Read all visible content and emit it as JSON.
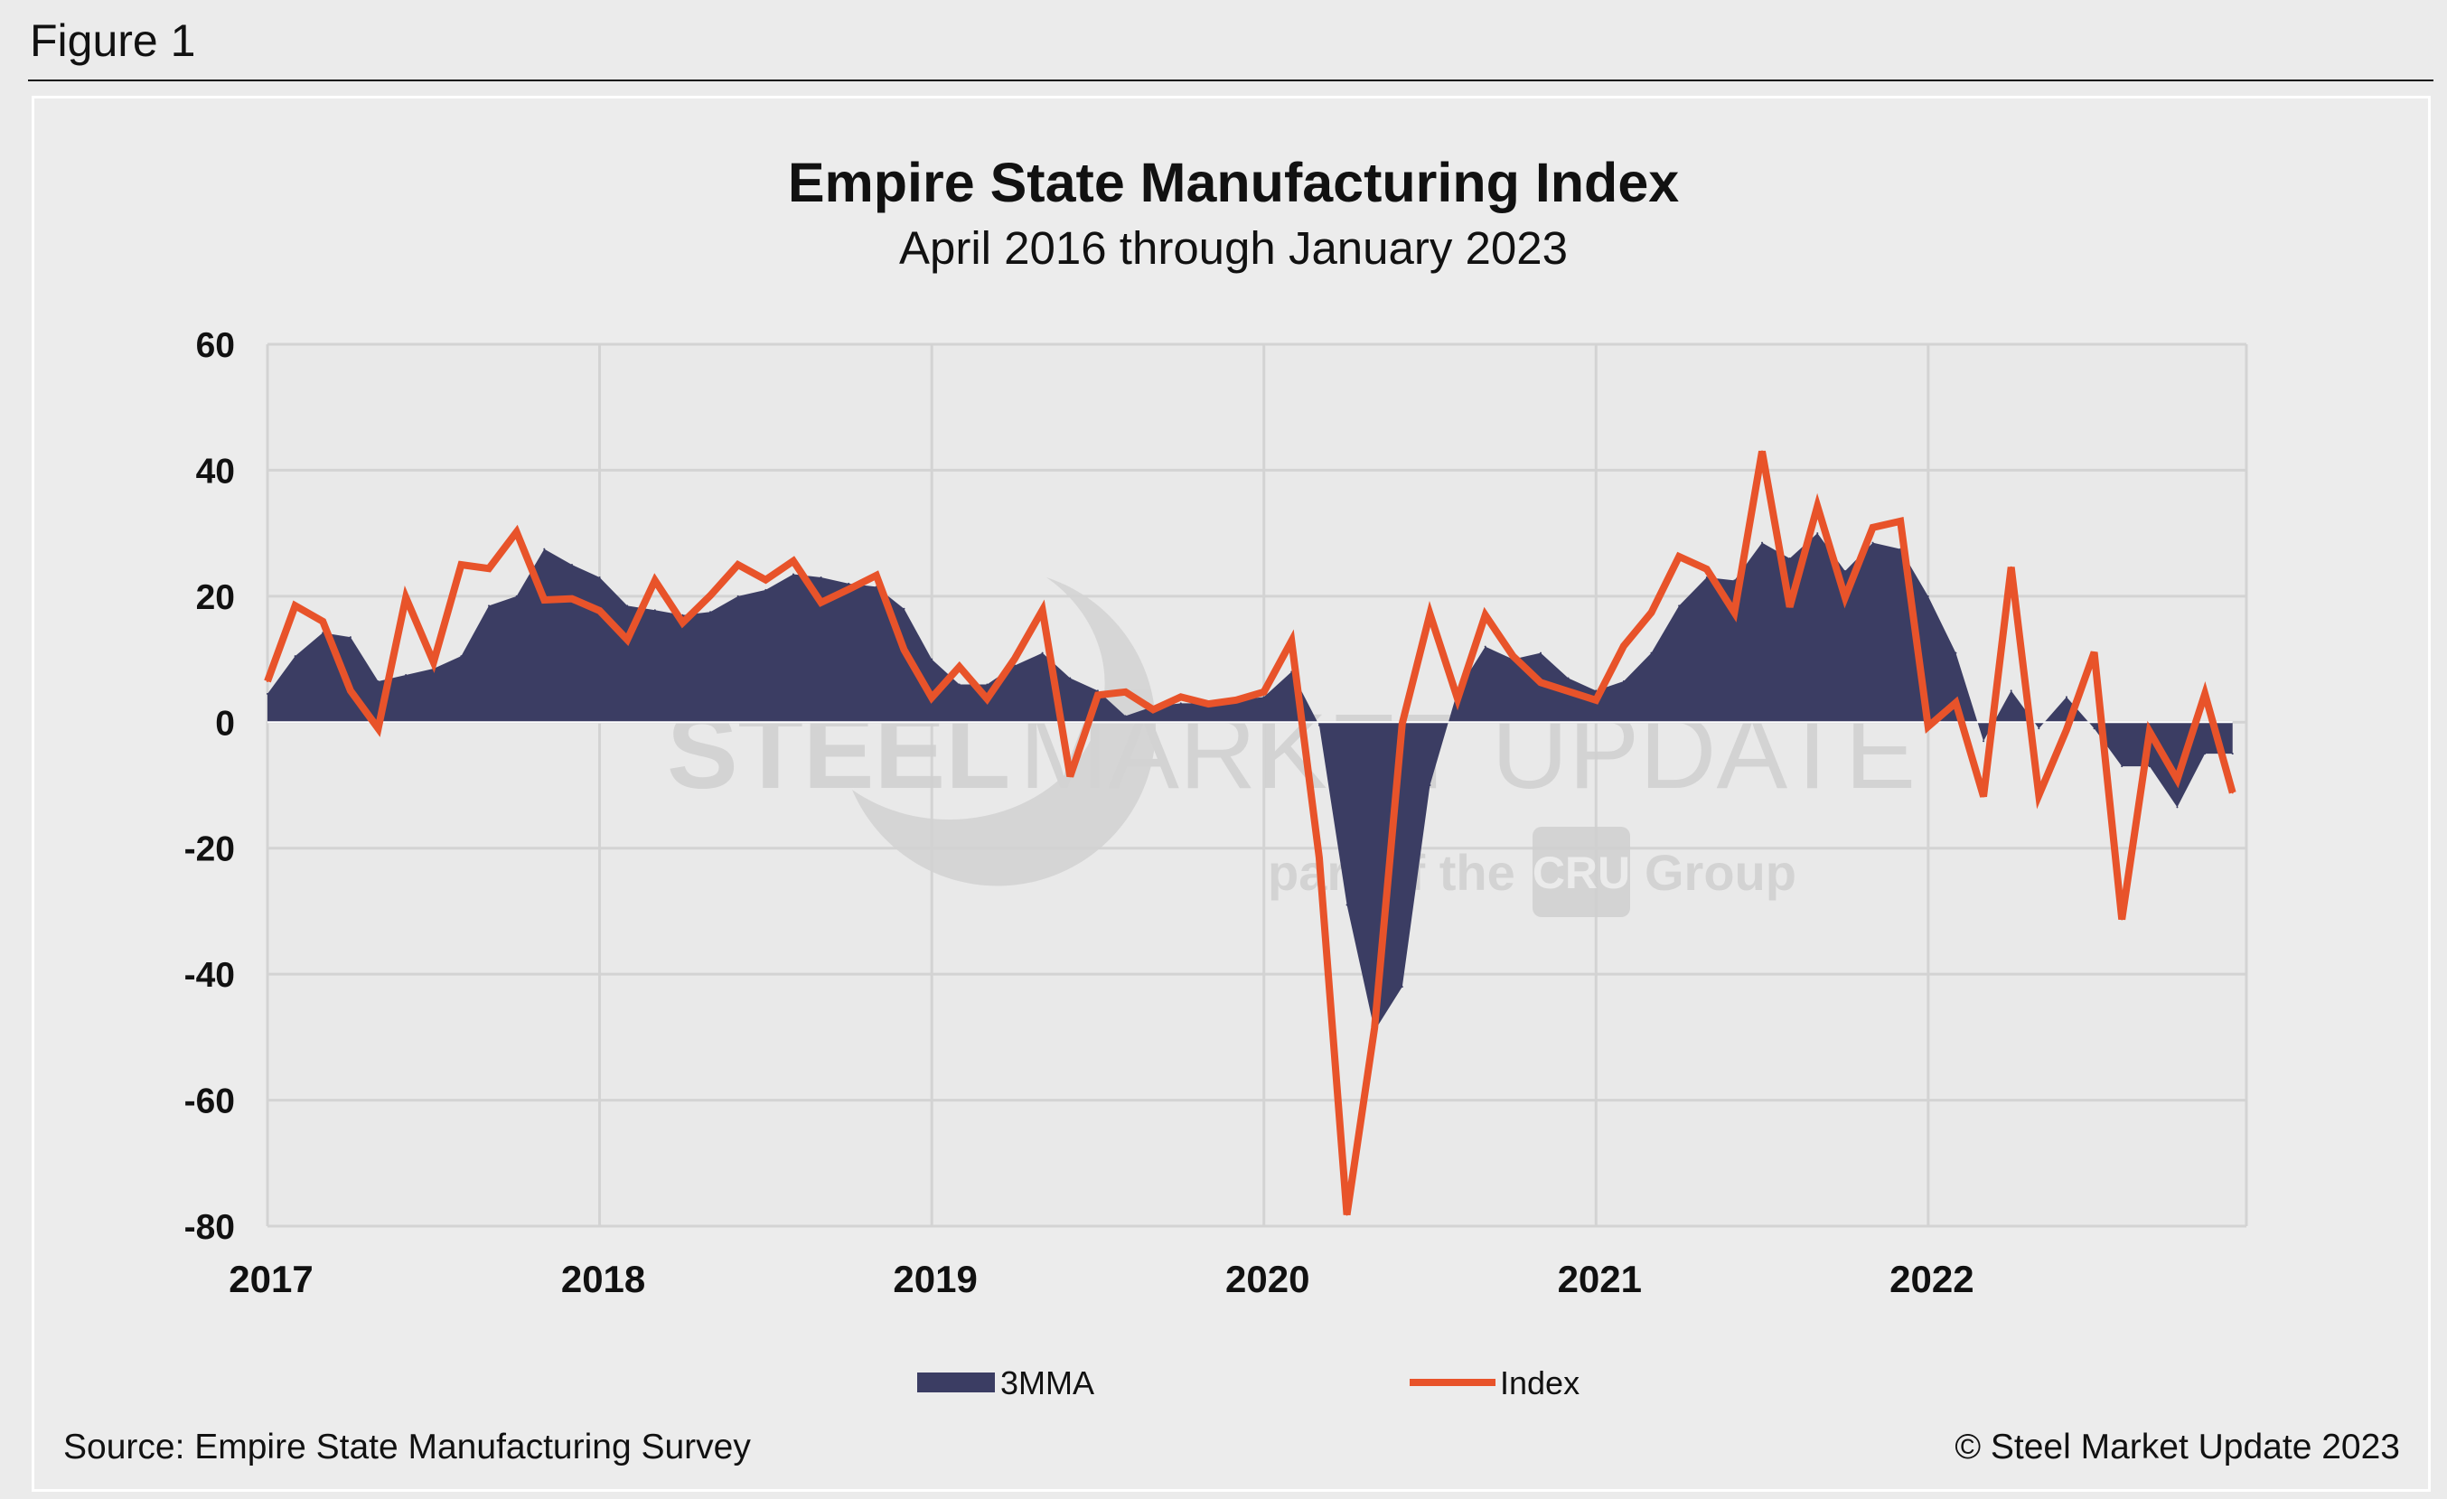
{
  "figure_label": "Figure 1",
  "watermark": {
    "brand_bold": "STEEL",
    "brand_light": "MARKET UPDATE",
    "tagline_start": "part of the",
    "tagline_logo": "CRU",
    "tagline_end": "Group"
  },
  "source": "Source: Empire State Manufacturing Survey",
  "copyright": "© Steel Market Update 2023",
  "colors": {
    "index_line": "#e8532a",
    "mma_area": "#3b3d63",
    "grid": "#d3d3d3",
    "background": "#ececec"
  },
  "chart_data": {
    "type": "area+line",
    "title": "Empire State Manufacturing Index",
    "subtitle": "April 2016 through January 2023",
    "xlabel": "",
    "ylabel": "",
    "ylim": [
      -80,
      60
    ],
    "yticks": [
      60,
      40,
      20,
      0,
      -20,
      -40,
      -60,
      -80
    ],
    "xticks": [
      {
        "label": "2017",
        "year": 2017
      },
      {
        "label": "2018",
        "year": 2018
      },
      {
        "label": "2019",
        "year": 2019
      },
      {
        "label": "2020",
        "year": 2020
      },
      {
        "label": "2021",
        "year": 2021
      },
      {
        "label": "2022",
        "year": 2022
      }
    ],
    "x_start": 2017.0,
    "x_step": 0.08333,
    "grid": true,
    "legend_position": "bottom",
    "series": [
      {
        "name": "3MMA",
        "kind": "area",
        "values": [
          4.5,
          10.5,
          14.2,
          13.5,
          6.5,
          7.5,
          8.5,
          10.5,
          18.5,
          20,
          27.5,
          25,
          23,
          18.5,
          17.8,
          17,
          17.5,
          20,
          21,
          23.5,
          23,
          22,
          21.5,
          18,
          10,
          6,
          6,
          9,
          11,
          7,
          5,
          1,
          2.5,
          3,
          3,
          3.5,
          4,
          8,
          -0.5,
          -29,
          -49,
          -42,
          -10,
          5,
          12,
          10,
          11,
          7,
          5,
          6.5,
          11,
          18.5,
          23,
          22.5,
          28.5,
          26,
          30,
          24,
          28.5,
          27.5,
          20,
          11,
          -3,
          5,
          -1,
          4,
          -1,
          -7,
          -7,
          -13.5,
          -5,
          -5
        ]
      },
      {
        "name": "Index",
        "kind": "line",
        "values": [
          6.5,
          18.5,
          16,
          5,
          -1,
          19.8,
          9.5,
          25,
          24.4,
          30.2,
          19.4,
          19.6,
          17.7,
          13.1,
          22.5,
          15.8,
          20.1,
          25,
          22.6,
          25.6,
          19,
          21.1,
          23.3,
          11.5,
          3.9,
          8.8,
          3.7,
          10.1,
          17.8,
          -8.6,
          4.3,
          4.8,
          2,
          4,
          2.9,
          3.5,
          4.8,
          12.9,
          -21.5,
          -78.2,
          -48.5,
          -0.2,
          17.2,
          3.7,
          17,
          10.5,
          6.3,
          4.9,
          3.5,
          12.1,
          17.4,
          26.3,
          24.3,
          17.4,
          43,
          18.3,
          34.3,
          19.8,
          30.9,
          31.9,
          -0.7,
          3.1,
          -11.8,
          24.6,
          -11.6,
          -1.2,
          11.1,
          -31.3,
          -1.5,
          -9.1,
          4.5,
          -11.2
        ]
      }
    ]
  }
}
